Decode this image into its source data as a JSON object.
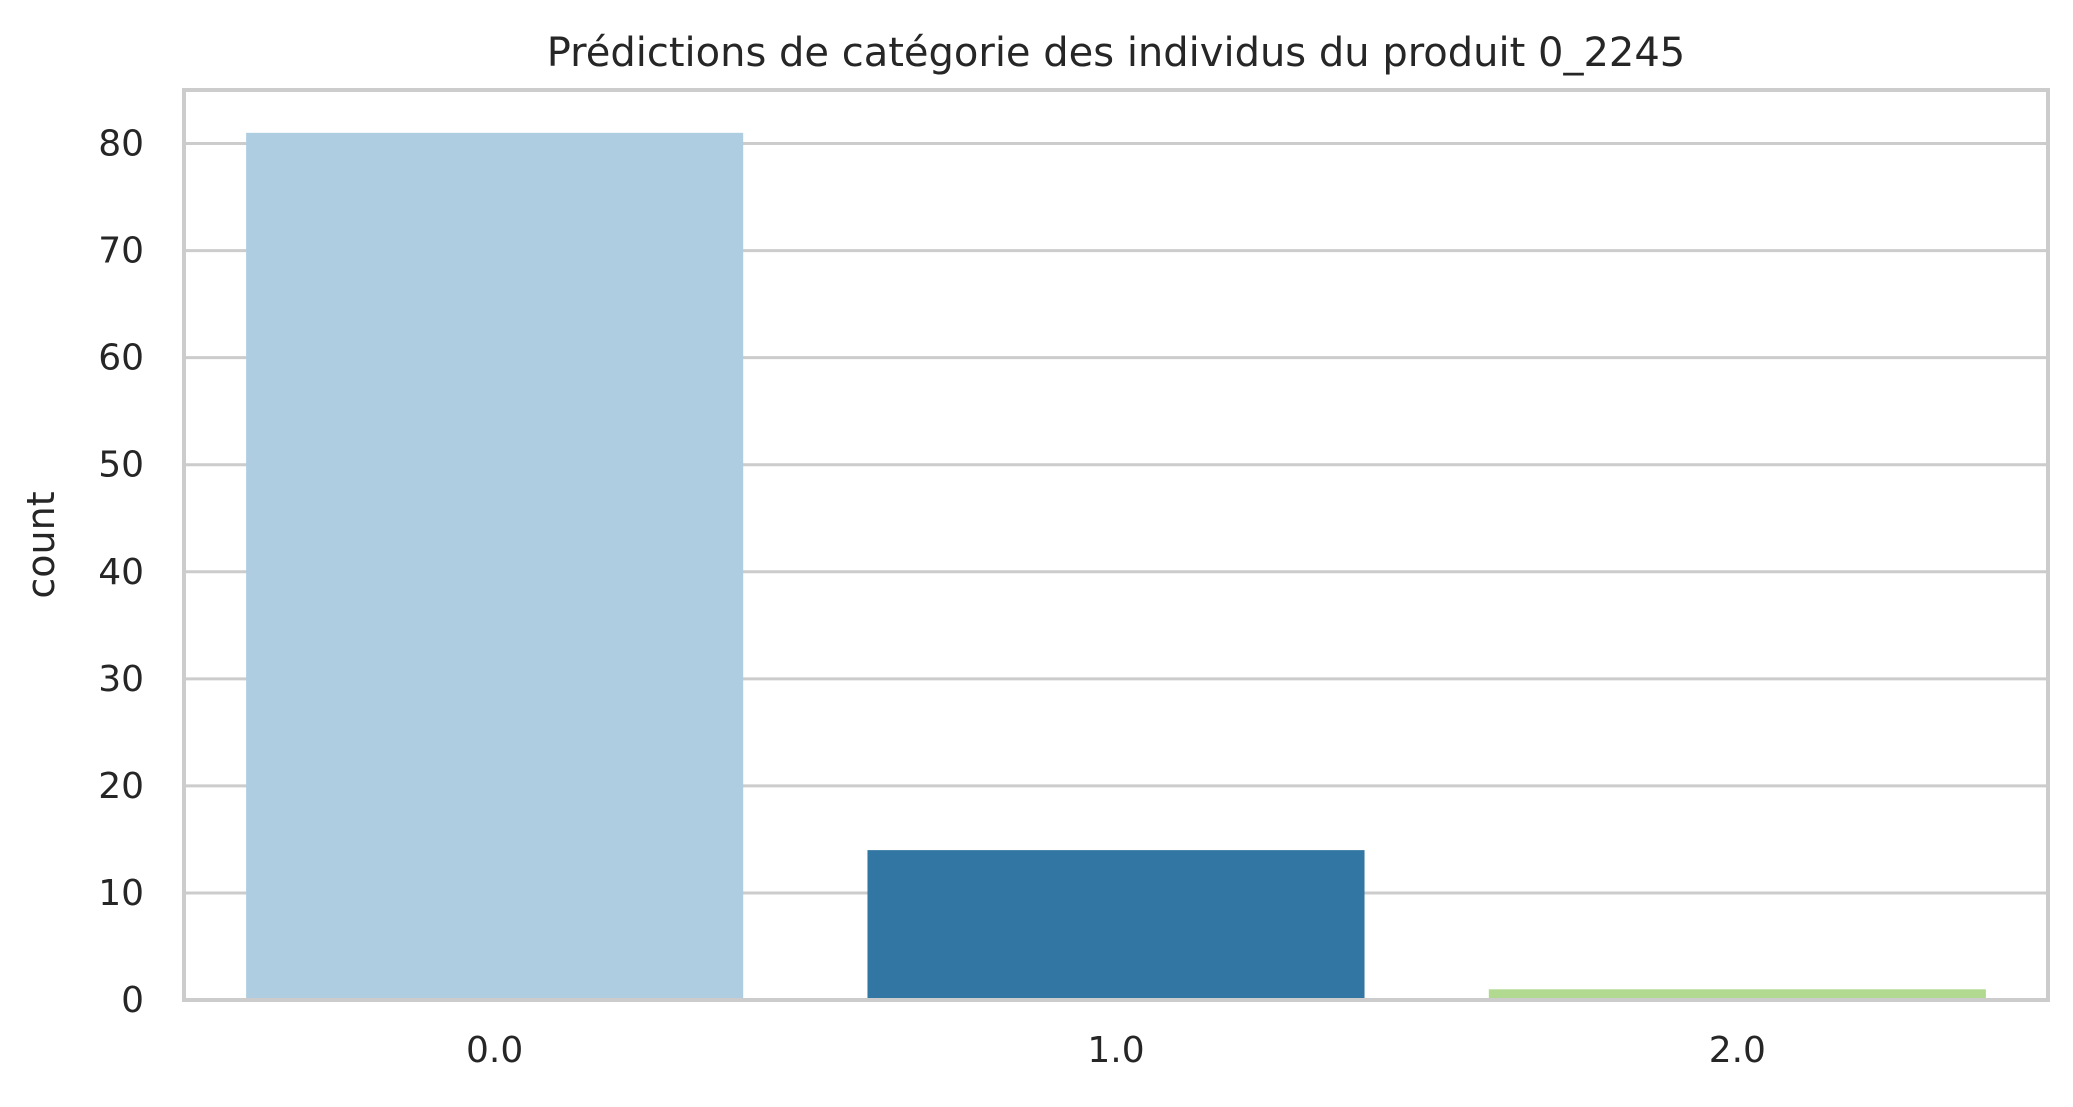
{
  "chart_data": {
    "type": "bar",
    "title": "Prédictions de catégorie des individus du produit 0_2245",
    "xlabel": "",
    "ylabel": "count",
    "categories": [
      "0.0",
      "1.0",
      "2.0"
    ],
    "values": [
      81,
      14,
      1
    ],
    "colors": [
      "#aecde0",
      "#3276a3",
      "#b1d98f"
    ],
    "ylim": [
      0,
      85
    ],
    "yticks": [
      0,
      10,
      20,
      30,
      40,
      50,
      60,
      70,
      80
    ],
    "grid": true,
    "grid_axis": "y",
    "grid_color": "#cccccc",
    "spine_color": "#cccccc",
    "background": "#ffffff",
    "legend": "none"
  }
}
